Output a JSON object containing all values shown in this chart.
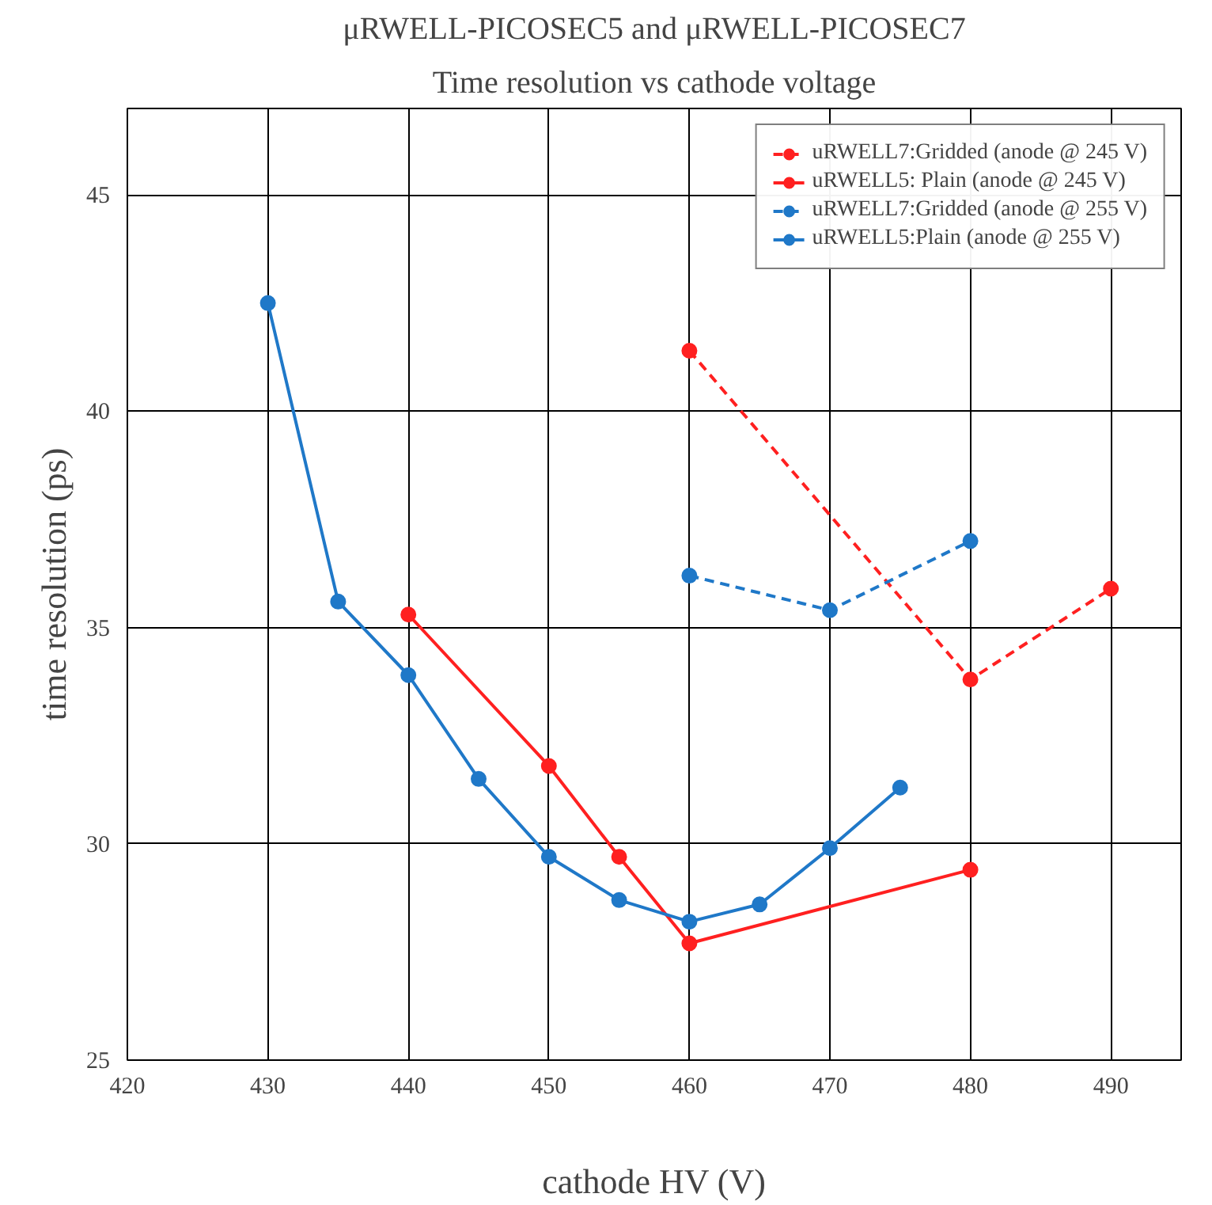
{
  "chart_data": {
    "type": "line",
    "title": "μRWELL-PICOSEC5 and μRWELL-PICOSEC7",
    "subtitle": "Time resolution vs cathode voltage",
    "xlabel": "cathode HV (V)",
    "ylabel": "time resolution (ps)",
    "xlim": [
      420,
      495
    ],
    "ylim": [
      25,
      47
    ],
    "xticks": [
      420,
      430,
      440,
      450,
      460,
      470,
      480,
      490
    ],
    "yticks": [
      25,
      30,
      35,
      40,
      45
    ],
    "grid": true,
    "legend": "top right",
    "marker": "circle",
    "series": [
      {
        "name": "uRWELL7:Gridded (anode @ 245 V)",
        "color": "#ff2020",
        "line_style": "dashed",
        "x": [
          460,
          480,
          490
        ],
        "values": [
          41.4,
          33.8,
          35.9
        ]
      },
      {
        "name": "uRWELL5: Plain (anode @ 245 V)",
        "color": "#ff2020",
        "line_style": "solid",
        "x": [
          440,
          450,
          455,
          460,
          480
        ],
        "values": [
          35.3,
          31.8,
          29.7,
          27.7,
          29.4
        ]
      },
      {
        "name": "uRWELL7:Gridded (anode @ 255 V)",
        "color": "#1f78c8",
        "line_style": "dashed",
        "x": [
          460,
          470,
          480
        ],
        "values": [
          36.2,
          35.4,
          37.0
        ]
      },
      {
        "name": "uRWELL5:Plain (anode @ 255 V)",
        "color": "#1f78c8",
        "line_style": "solid",
        "x": [
          430,
          435,
          440,
          445,
          450,
          455,
          460,
          465,
          470,
          475
        ],
        "values": [
          42.5,
          35.6,
          33.9,
          31.5,
          29.7,
          28.7,
          28.2,
          28.6,
          29.9,
          31.3
        ]
      }
    ]
  }
}
